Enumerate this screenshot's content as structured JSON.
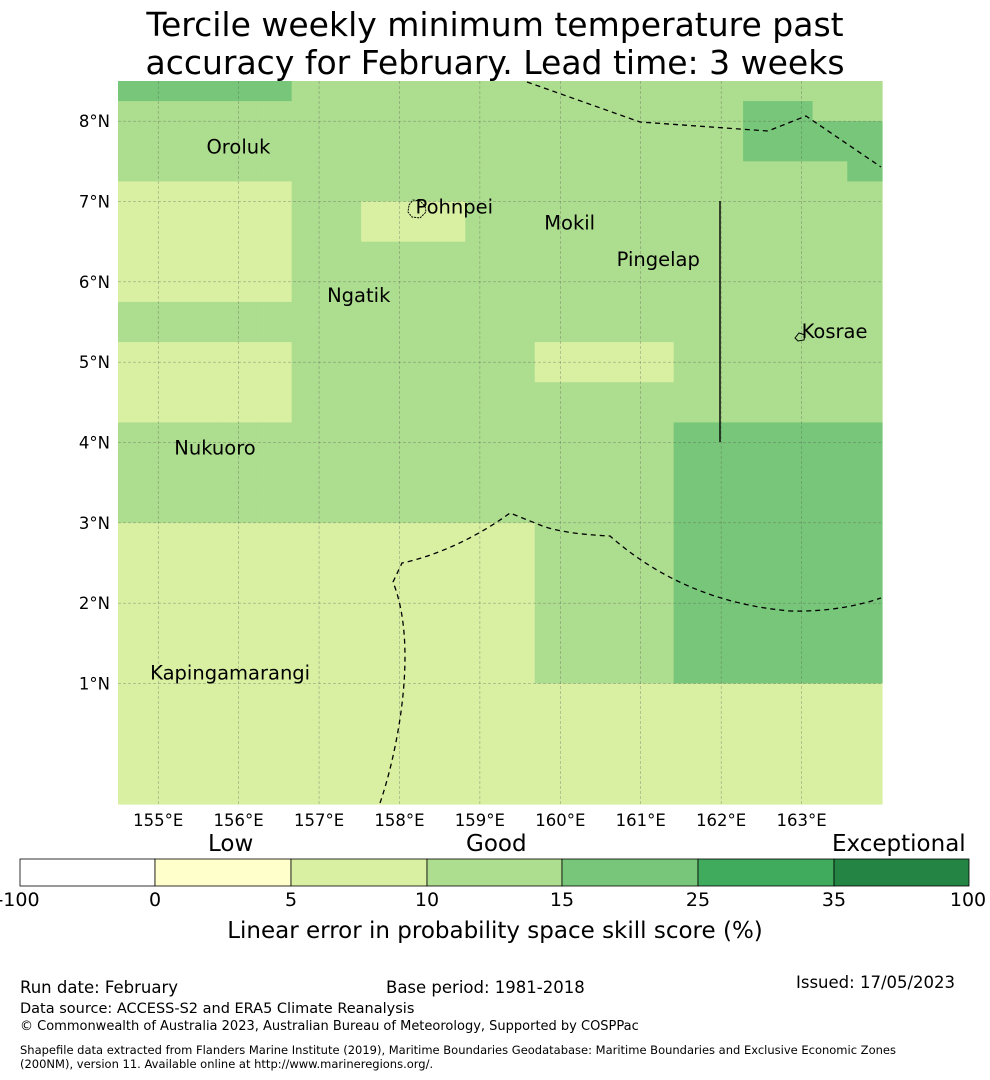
{
  "title_line1": "Tercile weekly minimum temperature past",
  "title_line2": "accuracy for February. Lead time: 3 weeks",
  "chart_data": {
    "type": "heatmap",
    "projection": "lat-lon grid",
    "lon_range": [
      154.5,
      164.0
    ],
    "lat_range": [
      -0.5,
      8.5
    ],
    "x_ticks": [
      "155°E",
      "156°E",
      "157°E",
      "158°E",
      "159°E",
      "160°E",
      "161°E",
      "162°E",
      "163°E"
    ],
    "y_ticks": [
      "1°N",
      "2°N",
      "3°N",
      "4°N",
      "5°N",
      "6°N",
      "7°N",
      "8°N"
    ],
    "grid_rows_north_to_south": [
      "4444433333333333333333",
      "3333333333333333334433",
      "3333333333333333334444",
      "3333333333333333334444",
      "3333333333333333333334",
      "2222233333333333333333",
      "2222233222333333333333",
      "2222233222333333333333",
      "2222233333333333333333",
      "2222233333333333333333",
      "2222233333333333333333",
      "3333333333333333333333",
      "3333333333333333333333",
      "2222233333332222333333",
      "2222233333332222333333",
      "2222233333333333333333",
      "2222233333333333333333",
      "3333333333333333444444",
      "3333333333333333444444",
      "3333333333333333444444",
      "3333333333333333444444",
      "3333333333333333444444",
      "2222222222223333444444",
      "2222222222223333444444",
      "2222222222223333444444",
      "2222222222223333444444",
      "2222222222223333444444",
      "2222222222223333444444",
      "2222222222223333444444",
      "2222222222223333444444",
      "2222222222222222222222",
      "2222222222222222222222",
      "2222222222222222222222",
      "2222222222222222222222",
      "2222222222222222222222",
      "2222222222222222222222"
    ],
    "classes": [
      {
        "range": "-100 to 0",
        "color": "#ffffff"
      },
      {
        "range": "0 to 5",
        "color": "#ffffcc"
      },
      {
        "range": "5 to 10",
        "color": "#d9f0a3"
      },
      {
        "range": "10 to 15",
        "color": "#addd8e"
      },
      {
        "range": "15 to 25",
        "color": "#78c679"
      },
      {
        "range": "25 to 35",
        "color": "#41ab5d"
      },
      {
        "range": "35 to 100",
        "color": "#238443"
      }
    ],
    "places": [
      {
        "name": "Oroluk",
        "lon": 155.6,
        "lat": 7.6
      },
      {
        "name": "Pohnpei",
        "lon": 158.2,
        "lat": 6.85
      },
      {
        "name": "Mokil",
        "lon": 159.8,
        "lat": 6.65
      },
      {
        "name": "Pingelap",
        "lon": 160.7,
        "lat": 6.2
      },
      {
        "name": "Ngatik",
        "lon": 157.1,
        "lat": 5.75
      },
      {
        "name": "Kosrae",
        "lon": 163.0,
        "lat": 5.3
      },
      {
        "name": "Nukuoro",
        "lon": 155.2,
        "lat": 3.85
      },
      {
        "name": "Kapingamarangi",
        "lon": 154.9,
        "lat": 1.05
      }
    ],
    "colorbar": {
      "ticks": [
        "-100",
        "0",
        "5",
        "10",
        "15",
        "25",
        "35",
        "100"
      ],
      "categories": [
        "Low",
        "Good",
        "Exceptional"
      ],
      "label": "Linear error in probability space skill score (%)"
    }
  },
  "footer": {
    "run_date": "Run date: February",
    "base_period": "Base period: 1981-2018",
    "issued": "Issued: 17/05/2023",
    "data_source": "Data source: ACCESS-S2 and ERA5 Climate Reanalysis",
    "copyright": "© Commonwealth of Australia 2023, Australian Bureau of Meteorology, Supported by COSPPac",
    "shapefile_line1": "Shapefile data extracted from Flanders Marine Institute (2019), Maritime Boundaries Geodatabase: Maritime Boundaries and Exclusive Economic Zones",
    "shapefile_line2": "(200NM), version 11. Available online at http://www.marineregions.org/."
  }
}
